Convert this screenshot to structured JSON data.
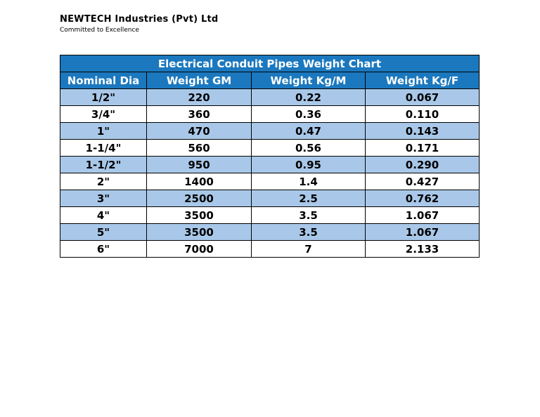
{
  "header": {
    "company": "NEWTECH Industries (Pvt) Ltd",
    "tagline": "Committed to Excellence"
  },
  "table": {
    "title": "Electrical Conduit Pipes Weight Chart",
    "columns": [
      "Nominal Dia",
      "Weight GM",
      "Weight Kg/M",
      "Weight Kg/F"
    ],
    "rows": [
      [
        "1/2\"",
        "220",
        "0.22",
        "0.067"
      ],
      [
        "3/4\"",
        "360",
        "0.36",
        "0.110"
      ],
      [
        "1\"",
        "470",
        "0.47",
        "0.143"
      ],
      [
        "1-1/4\"",
        "560",
        "0.56",
        "0.171"
      ],
      [
        "1-1/2\"",
        "950",
        "0.95",
        "0.290"
      ],
      [
        "2\"",
        "1400",
        "1.4",
        "0.427"
      ],
      [
        "3\"",
        "2500",
        "2.5",
        "0.762"
      ],
      [
        "4\"",
        "3500",
        "3.5",
        "1.067"
      ],
      [
        "5\"",
        "3500",
        "3.5",
        "1.067"
      ],
      [
        "6\"",
        "7000",
        "7",
        "2.133"
      ]
    ]
  },
  "colors": {
    "header_blue": "#1b78be",
    "row_light_blue": "#a9c8e9",
    "border": "#000000",
    "title_text": "#ffffff"
  }
}
